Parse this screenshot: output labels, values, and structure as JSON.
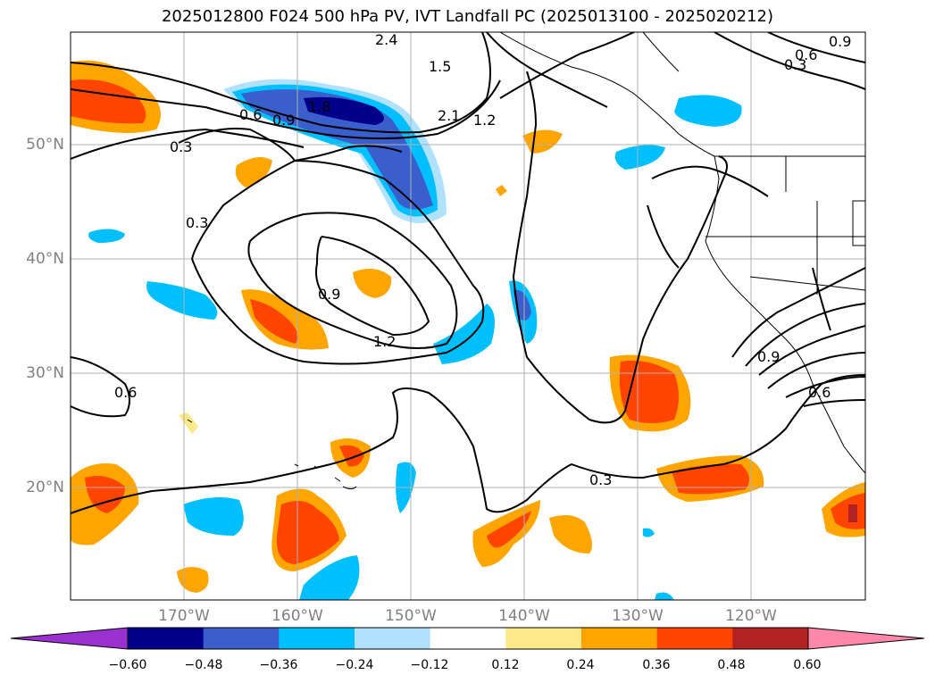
{
  "title": "2025012800 F024 500 hPa PV, IVT Landfall PC (2025013100 - 2025020212)",
  "lat_labels": [
    "50°N",
    "40°N",
    "30°N",
    "20°N"
  ],
  "lon_labels": [
    "170°W",
    "160°W",
    "150°W",
    "140°W",
    "130°W",
    "120°W"
  ],
  "colorbar": {
    "ticks": [
      "−0.60",
      "−0.48",
      "−0.36",
      "−0.24",
      "−0.12",
      "0.12",
      "0.24",
      "0.36",
      "0.48",
      "0.60"
    ],
    "colors": [
      "#9b30d0",
      "#00008b",
      "#3a5fcd",
      "#00bfff",
      "#b0e2ff",
      "#ffffff",
      "#fde98a",
      "#ffa500",
      "#ff4500",
      "#b22222",
      "#ff88aa"
    ]
  },
  "contour_labels": [
    "0.3",
    "0.6",
    "0.9",
    "1.2",
    "1.5",
    "1.8",
    "2.1",
    "2.4",
    "0.3",
    "0.9",
    "1.2",
    "0.6",
    "0.3",
    "0.9",
    "0.6",
    "0.3",
    "0.6",
    "0.9"
  ]
}
